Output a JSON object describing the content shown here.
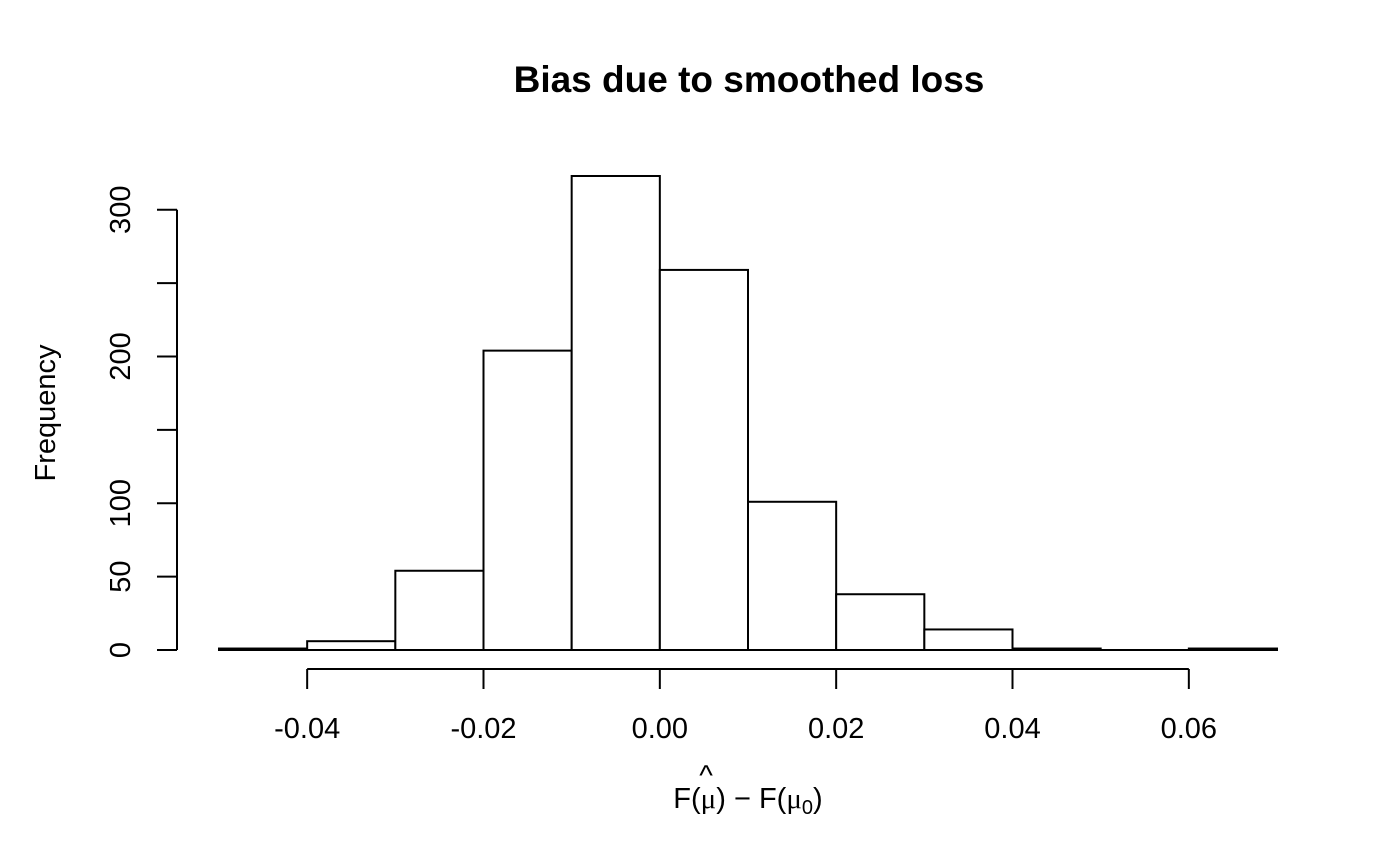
{
  "chart_data": {
    "type": "bar",
    "title": "Bias due to smoothed loss",
    "ylabel": "Frequency",
    "xlabel": {
      "prefix": "F(",
      "hat_var": "μ",
      "hat_mark": "^",
      "middle": ") − F(",
      "sub_var": "μ",
      "sub_index": "0",
      "suffix": ")"
    },
    "bins": [
      {
        "x0": -0.05,
        "x1": -0.04,
        "count": 1
      },
      {
        "x0": -0.04,
        "x1": -0.03,
        "count": 6
      },
      {
        "x0": -0.03,
        "x1": -0.02,
        "count": 54
      },
      {
        "x0": -0.02,
        "x1": -0.01,
        "count": 204
      },
      {
        "x0": -0.01,
        "x1": 0.0,
        "count": 323
      },
      {
        "x0": 0.0,
        "x1": 0.01,
        "count": 259
      },
      {
        "x0": 0.01,
        "x1": 0.02,
        "count": 101
      },
      {
        "x0": 0.02,
        "x1": 0.03,
        "count": 38
      },
      {
        "x0": 0.03,
        "x1": 0.04,
        "count": 14
      },
      {
        "x0": 0.04,
        "x1": 0.05,
        "count": 1
      },
      {
        "x0": 0.05,
        "x1": 0.06,
        "count": 0
      },
      {
        "x0": 0.06,
        "x1": 0.07,
        "count": 1
      }
    ],
    "x_ticks": [
      {
        "value": -0.04,
        "label": "-0.04"
      },
      {
        "value": -0.02,
        "label": "-0.02"
      },
      {
        "value": 0.0,
        "label": "0.00"
      },
      {
        "value": 0.02,
        "label": "0.02"
      },
      {
        "value": 0.04,
        "label": "0.04"
      },
      {
        "value": 0.06,
        "label": "0.06"
      }
    ],
    "y_ticks": [
      {
        "value": 0,
        "label": "0"
      },
      {
        "value": 50,
        "label": "50"
      },
      {
        "value": 100,
        "label": "100"
      },
      {
        "value": 150,
        "label": ""
      },
      {
        "value": 200,
        "label": "200"
      },
      {
        "value": 250,
        "label": ""
      },
      {
        "value": 300,
        "label": "300"
      }
    ],
    "xlim": [
      -0.05,
      0.07
    ],
    "ylim": [
      0,
      323
    ],
    "grid": false,
    "legend": "none"
  }
}
